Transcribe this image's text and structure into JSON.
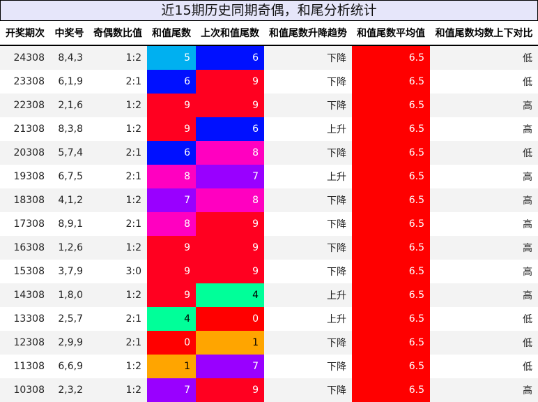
{
  "title": "近15期历史同期奇偶，和尾分析统计",
  "headers": [
    "开奖期次",
    "中奖号",
    "奇偶数比值",
    "和值尾数",
    "上次和值尾数",
    "和值尾数升降趋势",
    "和值尾数平均值",
    "和值尾数均数上下对比"
  ],
  "digit_colors": {
    "0": "#ff0000",
    "1": "#ffa500",
    "4": "#00ff99",
    "5": "#00b0f0",
    "6": "#0010ff",
    "7": "#9900ff",
    "8": "#ff00c0",
    "9": "#ff0020"
  },
  "avg_color": "#ff0000",
  "rows": [
    [
      "24308",
      "8,4,3",
      "1:2",
      "5",
      "6",
      "下降",
      "6.5",
      "低"
    ],
    [
      "23308",
      "6,1,9",
      "2:1",
      "6",
      "9",
      "下降",
      "6.5",
      "低"
    ],
    [
      "22308",
      "2,1,6",
      "1:2",
      "9",
      "9",
      "下降",
      "6.5",
      "高"
    ],
    [
      "21308",
      "8,3,8",
      "1:2",
      "9",
      "6",
      "上升",
      "6.5",
      "高"
    ],
    [
      "20308",
      "5,7,4",
      "2:1",
      "6",
      "8",
      "下降",
      "6.5",
      "低"
    ],
    [
      "19308",
      "6,7,5",
      "2:1",
      "8",
      "7",
      "上升",
      "6.5",
      "高"
    ],
    [
      "18308",
      "4,1,2",
      "1:2",
      "7",
      "8",
      "下降",
      "6.5",
      "高"
    ],
    [
      "17308",
      "8,9,1",
      "2:1",
      "8",
      "9",
      "下降",
      "6.5",
      "高"
    ],
    [
      "16308",
      "1,2,6",
      "1:2",
      "9",
      "9",
      "下降",
      "6.5",
      "高"
    ],
    [
      "15308",
      "3,7,9",
      "3:0",
      "9",
      "9",
      "下降",
      "6.5",
      "高"
    ],
    [
      "14308",
      "1,8,0",
      "1:2",
      "9",
      "4",
      "上升",
      "6.5",
      "高"
    ],
    [
      "13308",
      "2,5,7",
      "2:1",
      "4",
      "0",
      "上升",
      "6.5",
      "低"
    ],
    [
      "12308",
      "2,9,9",
      "2:1",
      "0",
      "1",
      "下降",
      "6.5",
      "低"
    ],
    [
      "11308",
      "6,6,9",
      "1:2",
      "1",
      "7",
      "下降",
      "6.5",
      "低"
    ],
    [
      "10308",
      "2,3,2",
      "1:2",
      "7",
      "9",
      "下降",
      "6.5",
      "高"
    ]
  ]
}
